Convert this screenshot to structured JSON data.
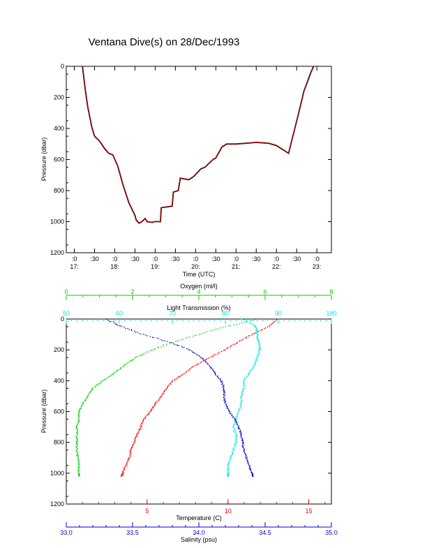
{
  "title": "Ventana Dive(s) on 28/Dec/1993",
  "colors": {
    "axis": "#000000",
    "pressure_trace": "#cc0000",
    "pressure_shadow": "#000000",
    "temperature": "#ff0000",
    "oxygen": "#00cc00",
    "transmission": "#00e5e5",
    "salinity": "#0000cc"
  },
  "chart_data": [
    {
      "type": "line",
      "ylabel": "Pressure (dbar)",
      "xlabel": "Time (UTC)",
      "y_ticks": [
        0,
        200,
        400,
        600,
        800,
        1000,
        1200
      ],
      "ylim": [
        0,
        1200
      ],
      "y_reversed": true,
      "x_ticks_top": [
        ":0",
        ":30",
        ":0",
        ":30",
        ":0",
        ":30",
        ":0",
        ":30",
        ":0",
        ":30",
        ":0",
        ":30",
        ":0"
      ],
      "x_ticks_bottom": [
        "17:",
        "",
        "18:",
        "",
        "19:",
        "",
        "20:",
        "",
        "21:",
        "",
        "22:",
        "",
        "23:"
      ],
      "x_tick_hours": [
        17.0,
        17.5,
        18.0,
        18.5,
        19.0,
        19.5,
        20.0,
        20.5,
        21.0,
        21.5,
        22.0,
        22.5,
        23.0
      ],
      "xlim": [
        16.8,
        23.36
      ],
      "series": [
        {
          "x": [
            17.2,
            17.27,
            17.33,
            17.43,
            17.5,
            17.62,
            17.75,
            17.85,
            17.95,
            18.07,
            18.2,
            18.35,
            18.5,
            18.53,
            18.6,
            18.67,
            18.75,
            18.8,
            18.93,
            18.97,
            19.13,
            19.15,
            19.42,
            19.45,
            19.57,
            19.62,
            19.83,
            19.95,
            20.13,
            20.23,
            20.43,
            20.5,
            20.65,
            20.77,
            21.0,
            21.5,
            21.8,
            22.0,
            22.3,
            22.55,
            22.68,
            22.85,
            22.92
          ],
          "y": [
            0,
            150,
            260,
            390,
            450,
            480,
            530,
            560,
            570,
            640,
            760,
            880,
            960,
            990,
            1010,
            1000,
            980,
            1000,
            1005,
            1000,
            1000,
            910,
            900,
            810,
            800,
            720,
            730,
            710,
            660,
            650,
            600,
            590,
            520,
            500,
            500,
            490,
            495,
            510,
            560,
            300,
            160,
            40,
            0
          ]
        }
      ]
    },
    {
      "type": "scatter",
      "ylabel": "Pressure (dbar)",
      "y_ticks": [
        0,
        200,
        400,
        600,
        800,
        1000,
        1200
      ],
      "ylim": [
        0,
        1200
      ],
      "y_reversed": true,
      "axes": {
        "oxygen": {
          "label": "Oxygen (ml/l)",
          "ticks": [
            0,
            2,
            4,
            6,
            8
          ],
          "lim": [
            0,
            8
          ]
        },
        "transmission": {
          "label": "Light Transmission (%)",
          "ticks": [
            50,
            60,
            70,
            80,
            90,
            100
          ],
          "lim": [
            50,
            100
          ]
        },
        "temperature": {
          "label": "Temperature (C)",
          "ticks": [
            5,
            10,
            15
          ],
          "lim": [
            0,
            16.4
          ]
        },
        "salinity": {
          "label": "Salinity (psu)",
          "ticks": [
            "33.0",
            "33.5",
            "34.0",
            "34.5",
            "35.0"
          ],
          "lim": [
            33.0,
            35.0
          ]
        }
      },
      "series": [
        {
          "axis": "temperature",
          "p": [
            0,
            50,
            100,
            150,
            200,
            250,
            300,
            350,
            400,
            450,
            500,
            550,
            600,
            650,
            700,
            750,
            800,
            850,
            900,
            950,
            1000,
            1020
          ],
          "v": [
            13.1,
            12.5,
            11.5,
            10.6,
            9.8,
            8.9,
            8.0,
            7.3,
            6.6,
            6.2,
            5.9,
            5.5,
            5.2,
            4.8,
            4.6,
            4.4,
            4.2,
            4.0,
            3.9,
            3.7,
            3.5,
            3.4
          ]
        },
        {
          "axis": "oxygen",
          "p": [
            0,
            50,
            100,
            150,
            200,
            250,
            300,
            350,
            400,
            450,
            500,
            550,
            600,
            650,
            700,
            750,
            800,
            850,
            900,
            950,
            1000,
            1020
          ],
          "v": [
            5.8,
            4.8,
            4.0,
            3.2,
            2.6,
            2.1,
            1.75,
            1.45,
            1.1,
            0.8,
            0.65,
            0.5,
            0.38,
            0.38,
            0.32,
            0.32,
            0.32,
            0.32,
            0.35,
            0.38,
            0.38,
            0.38
          ]
        },
        {
          "axis": "transmission",
          "p": [
            0,
            40,
            80,
            120,
            160,
            200,
            250,
            300,
            350,
            400,
            450,
            500,
            550,
            600,
            650,
            700,
            750,
            800,
            850,
            900,
            950,
            1000,
            1020
          ],
          "v": [
            83,
            85.5,
            86,
            86,
            86.5,
            86.5,
            86,
            85.5,
            84.5,
            83.5,
            83.5,
            83,
            83,
            82.5,
            82,
            81.5,
            82,
            82,
            81.5,
            81,
            80.5,
            80.5,
            80.5
          ]
        },
        {
          "axis": "salinity",
          "p": [
            0,
            50,
            100,
            150,
            200,
            250,
            300,
            350,
            400,
            450,
            500,
            550,
            600,
            650,
            700,
            750,
            800,
            850,
            900,
            950,
            1000,
            1020
          ],
          "v": [
            33.3,
            33.42,
            33.58,
            33.78,
            33.93,
            34.02,
            34.08,
            34.12,
            34.17,
            34.19,
            34.19,
            34.2,
            34.23,
            34.27,
            34.3,
            34.32,
            34.33,
            34.34,
            34.36,
            34.38,
            34.4,
            34.41
          ]
        }
      ]
    }
  ]
}
